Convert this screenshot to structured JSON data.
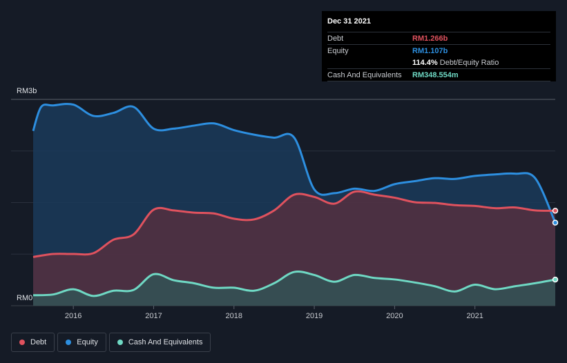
{
  "tooltip": {
    "date": "Dec 31 2021",
    "debt_label": "Debt",
    "debt_value": "RM1.266b",
    "equity_label": "Equity",
    "equity_value": "RM1.107b",
    "ratio_value": "114.4%",
    "ratio_label": "Debt/Equity Ratio",
    "cash_label": "Cash And Equivalents",
    "cash_value": "RM348.554m"
  },
  "legend": {
    "items": [
      {
        "label": "Debt",
        "color": "#e0525e"
      },
      {
        "label": "Equity",
        "color": "#2d8fe0"
      },
      {
        "label": "Cash And Equivalents",
        "color": "#6fd9c4"
      }
    ]
  },
  "colors": {
    "debt": "#e0525e",
    "equity": "#2d8fe0",
    "cash": "#6fd9c4",
    "background": "#151b26"
  },
  "chart_data": {
    "type": "area",
    "y_unit": "RM",
    "ylim": [
      0,
      2.75
    ],
    "y_ticks": [
      {
        "value": 0,
        "label": "RM0"
      },
      {
        "value": 2.75,
        "label": "RM3b"
      }
    ],
    "xlim": [
      2015.5,
      2022.0
    ],
    "x_ticks": [
      "2016",
      "2017",
      "2018",
      "2019",
      "2020",
      "2021"
    ],
    "series": [
      {
        "name": "Equity",
        "points": [
          [
            2015.5,
            2.33
          ],
          [
            2015.6,
            2.65
          ],
          [
            2015.75,
            2.67
          ],
          [
            2016.0,
            2.68
          ],
          [
            2016.25,
            2.53
          ],
          [
            2016.5,
            2.57
          ],
          [
            2016.75,
            2.65
          ],
          [
            2017.0,
            2.36
          ],
          [
            2017.25,
            2.36
          ],
          [
            2017.5,
            2.4
          ],
          [
            2017.75,
            2.43
          ],
          [
            2018.0,
            2.34
          ],
          [
            2018.25,
            2.28
          ],
          [
            2018.5,
            2.24
          ],
          [
            2018.75,
            2.24
          ],
          [
            2019.0,
            1.55
          ],
          [
            2019.25,
            1.5
          ],
          [
            2019.5,
            1.56
          ],
          [
            2019.75,
            1.53
          ],
          [
            2020.0,
            1.62
          ],
          [
            2020.25,
            1.66
          ],
          [
            2020.5,
            1.7
          ],
          [
            2020.75,
            1.69
          ],
          [
            2021.0,
            1.73
          ],
          [
            2021.25,
            1.75
          ],
          [
            2021.5,
            1.76
          ],
          [
            2021.75,
            1.7
          ],
          [
            2022.0,
            1.107
          ]
        ]
      },
      {
        "name": "Debt",
        "points": [
          [
            2015.5,
            0.65
          ],
          [
            2015.75,
            0.69
          ],
          [
            2016.0,
            0.69
          ],
          [
            2016.25,
            0.7
          ],
          [
            2016.5,
            0.88
          ],
          [
            2016.75,
            0.95
          ],
          [
            2017.0,
            1.28
          ],
          [
            2017.25,
            1.27
          ],
          [
            2017.5,
            1.24
          ],
          [
            2017.75,
            1.23
          ],
          [
            2018.0,
            1.16
          ],
          [
            2018.25,
            1.15
          ],
          [
            2018.5,
            1.27
          ],
          [
            2018.75,
            1.48
          ],
          [
            2019.0,
            1.45
          ],
          [
            2019.25,
            1.36
          ],
          [
            2019.5,
            1.52
          ],
          [
            2019.75,
            1.48
          ],
          [
            2020.0,
            1.44
          ],
          [
            2020.25,
            1.38
          ],
          [
            2020.5,
            1.37
          ],
          [
            2020.75,
            1.34
          ],
          [
            2021.0,
            1.33
          ],
          [
            2021.25,
            1.3
          ],
          [
            2021.5,
            1.31
          ],
          [
            2021.75,
            1.27
          ],
          [
            2022.0,
            1.266
          ]
        ]
      },
      {
        "name": "Cash And Equivalents",
        "points": [
          [
            2015.5,
            0.14
          ],
          [
            2015.75,
            0.15
          ],
          [
            2016.0,
            0.22
          ],
          [
            2016.25,
            0.13
          ],
          [
            2016.5,
            0.2
          ],
          [
            2016.75,
            0.21
          ],
          [
            2017.0,
            0.42
          ],
          [
            2017.25,
            0.34
          ],
          [
            2017.5,
            0.3
          ],
          [
            2017.75,
            0.24
          ],
          [
            2018.0,
            0.24
          ],
          [
            2018.25,
            0.2
          ],
          [
            2018.5,
            0.3
          ],
          [
            2018.75,
            0.45
          ],
          [
            2019.0,
            0.41
          ],
          [
            2019.25,
            0.32
          ],
          [
            2019.5,
            0.41
          ],
          [
            2019.75,
            0.37
          ],
          [
            2020.0,
            0.35
          ],
          [
            2020.25,
            0.31
          ],
          [
            2020.5,
            0.26
          ],
          [
            2020.75,
            0.19
          ],
          [
            2021.0,
            0.28
          ],
          [
            2021.25,
            0.22
          ],
          [
            2021.5,
            0.26
          ],
          [
            2021.75,
            0.3
          ],
          [
            2022.0,
            0.3486
          ]
        ]
      }
    ]
  }
}
